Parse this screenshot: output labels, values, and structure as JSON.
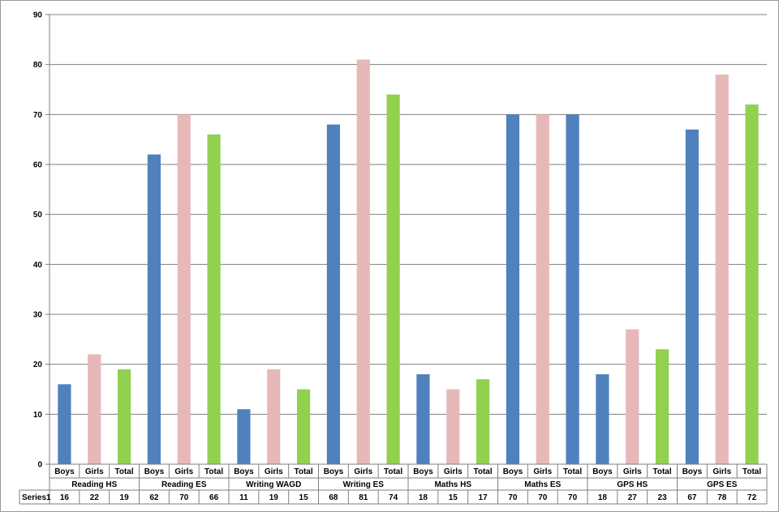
{
  "chart_data": {
    "type": "bar",
    "groups": [
      {
        "name": "Reading HS",
        "items": [
          {
            "label": "Boys",
            "value": 16
          },
          {
            "label": "Girls",
            "value": 22
          },
          {
            "label": "Total",
            "value": 19
          }
        ]
      },
      {
        "name": "Reading ES",
        "items": [
          {
            "label": "Boys",
            "value": 62
          },
          {
            "label": "Girls",
            "value": 70
          },
          {
            "label": "Total",
            "value": 66
          }
        ]
      },
      {
        "name": "Writing WAGD",
        "items": [
          {
            "label": "Boys",
            "value": 11
          },
          {
            "label": "Girls",
            "value": 19
          },
          {
            "label": "Total",
            "value": 15
          }
        ]
      },
      {
        "name": "Writing ES",
        "items": [
          {
            "label": "Boys",
            "value": 68
          },
          {
            "label": "Girls",
            "value": 81
          },
          {
            "label": "Total",
            "value": 74
          }
        ]
      },
      {
        "name": "Maths HS",
        "items": [
          {
            "label": "Boys",
            "value": 18
          },
          {
            "label": "Girls",
            "value": 15
          },
          {
            "label": "Total",
            "value": 17
          }
        ]
      },
      {
        "name": "Maths ES",
        "items": [
          {
            "label": "Boys",
            "value": 70
          },
          {
            "label": "Girls",
            "value": 70
          },
          {
            "label": "Total",
            "value": 70
          }
        ]
      },
      {
        "name": "GPS HS",
        "items": [
          {
            "label": "Boys",
            "value": 18
          },
          {
            "label": "Girls",
            "value": 27
          },
          {
            "label": "Total",
            "value": 23
          }
        ]
      },
      {
        "name": "GPS ES",
        "items": [
          {
            "label": "Boys",
            "value": 67
          },
          {
            "label": "Girls",
            "value": 78
          },
          {
            "label": "Total",
            "value": 72
          }
        ]
      }
    ],
    "series": [
      {
        "name": "Series1"
      }
    ],
    "ylim": [
      0,
      90
    ],
    "yticks": [
      "0",
      "10",
      "20",
      "30",
      "40",
      "50",
      "60",
      "70",
      "80",
      "90"
    ],
    "grid": true,
    "data_table": true,
    "bar_colors": [
      "#4f81bd",
      "#e6b9b8",
      "#92d050",
      "#4f81bd",
      "#e6b9b8",
      "#92d050",
      "#4f81bd",
      "#e6b9b8",
      "#92d050",
      "#4f81bd",
      "#e6b9b8",
      "#92d050",
      "#4f81bd",
      "#e6b9b8",
      "#92d050",
      "#4f81bd",
      "#e6b9b8",
      "#4f81bd",
      "#4f81bd",
      "#e6b9b8",
      "#92d050",
      "#4f81bd",
      "#e6b9b8",
      "#92d050"
    ]
  }
}
